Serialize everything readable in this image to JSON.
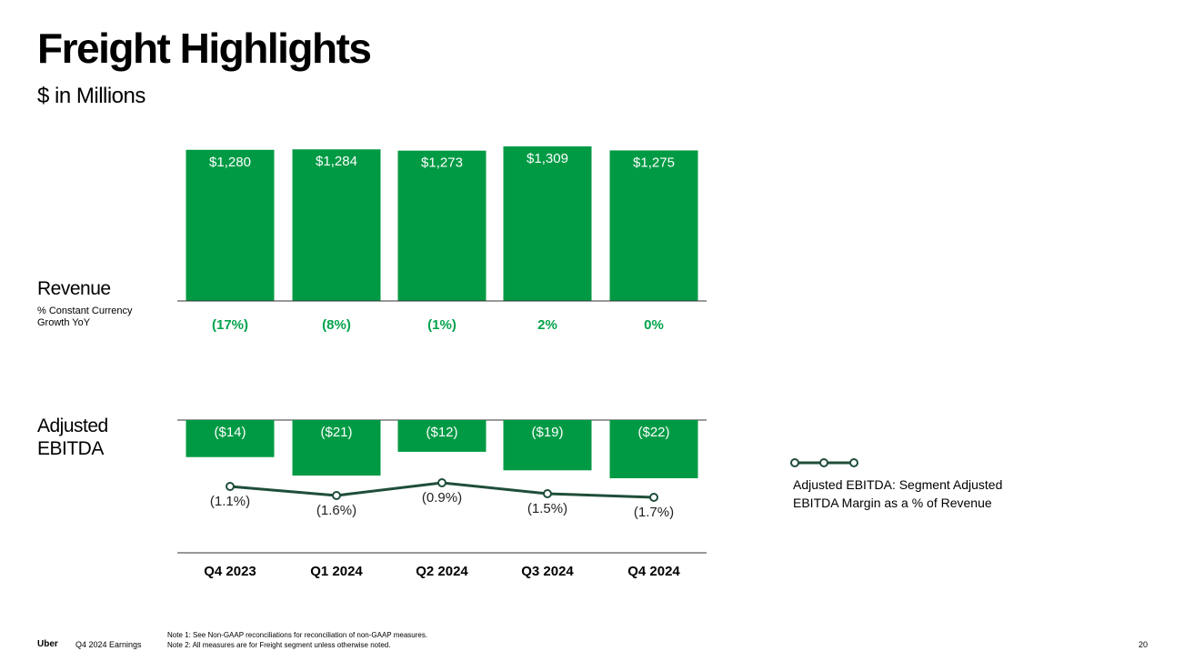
{
  "page": {
    "title": "Freight Highlights",
    "subtitle": "$ in Millions",
    "footer_brand": "Uber",
    "footer_doc": "Q4 2024 Earnings",
    "notes": [
      "Note 1: See Non-GAAP reconciliations for reconciliation of non-GAAP measures.",
      "Note 2: All measures are for Freight segment unless otherwise noted."
    ],
    "page_number": "20"
  },
  "sections": {
    "revenue_label": "Revenue",
    "revenue_sub_line1": "% Constant Currency",
    "revenue_sub_line2": "Growth YoY",
    "ebitda_label_line1": "Adjusted",
    "ebitda_label_line2": "EBITDA"
  },
  "legend": {
    "line1": "Adjusted EBITDA: Segment Adjusted",
    "line2": "EBITDA Margin as a % of Revenue"
  },
  "colors": {
    "bar": "#009a44",
    "growth_text": "#04a34c",
    "margin_line": "#1f4e3a",
    "axis": "#333333"
  },
  "chart_data": [
    {
      "type": "bar",
      "categories": [
        "Q4 2023",
        "Q1 2024",
        "Q2 2024",
        "Q3 2024",
        "Q4 2024"
      ],
      "values": [
        1280,
        1284,
        1273,
        1309,
        1275
      ],
      "value_labels": [
        "$1,280",
        "$1,284",
        "$1,273",
        "$1,309",
        "$1,275"
      ],
      "growth_labels": [
        "(17%)",
        "(8%)",
        "(1%)",
        "2%",
        "0%"
      ],
      "growth_values": [
        -17,
        -8,
        -1,
        2,
        0
      ],
      "ylim": [
        0,
        1309
      ]
    },
    {
      "type": "bar",
      "categories": [
        "Q4 2023",
        "Q1 2024",
        "Q2 2024",
        "Q3 2024",
        "Q4 2024"
      ],
      "values": [
        -14,
        -21,
        -12,
        -19,
        -22
      ],
      "value_labels": [
        "($14)",
        "($21)",
        "($12)",
        "($19)",
        "($22)"
      ],
      "ylim": [
        -22,
        0
      ]
    },
    {
      "type": "line",
      "categories": [
        "Q4 2023",
        "Q1 2024",
        "Q2 2024",
        "Q3 2024",
        "Q4 2024"
      ],
      "values": [
        -1.1,
        -1.6,
        -0.9,
        -1.5,
        -1.7
      ],
      "value_labels": [
        "(1.1%)",
        "(1.6%)",
        "(0.9%)",
        "(1.5%)",
        "(1.7%)"
      ]
    }
  ]
}
